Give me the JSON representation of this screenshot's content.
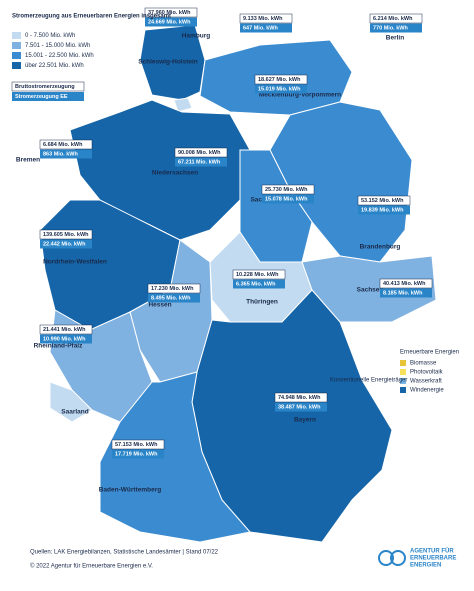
{
  "legend": {
    "title": "Stromerzeugung aus Erneuerbaren Energien insgesamt",
    "classes": [
      "0 - 7.500 Mio. kWh",
      "7.501 - 15.000 Mio. kWh",
      "15.001 - 22.500 Mio. kWh",
      "über 22.501 Mio. kWh"
    ],
    "box_total": "Bruttostromerzeugung",
    "box_ee": "Stromerzeugung EE"
  },
  "sources": {
    "title": "Erneuerbare Energien",
    "items": [
      "Biomasse",
      "Photovoltaik",
      "Wasserkraft",
      "Windenergie"
    ],
    "conventional": "Konventionelle Energieträger"
  },
  "states": [
    {
      "name": "Schleswig-Holstein",
      "total": "37.960 Mio. kWh",
      "ee": "24.669 Mio. kWh"
    },
    {
      "name": "Hamburg",
      "total": "9.133 Mio. kWh",
      "ee": "647 Mio. kWh"
    },
    {
      "name": "Mecklenburg-Vorpommern",
      "total": "18.627 Mio. kWh",
      "ee": "15.019 Mio. kWh"
    },
    {
      "name": "Bremen",
      "total": "6.684 Mio. kWh",
      "ee": "863 Mio. kWh"
    },
    {
      "name": "Niedersachsen",
      "total": "90.008 Mio. kWh",
      "ee": "67.211 Mio. kWh"
    },
    {
      "name": "Berlin",
      "total": "6.214 Mio. kWh",
      "ee": "770 Mio. kWh"
    },
    {
      "name": "Brandenburg",
      "total": "53.152 Mio. kWh",
      "ee": "19.839 Mio. kWh"
    },
    {
      "name": "Sachsen-Anhalt",
      "total": "25.730 Mio. kWh",
      "ee": "15.078 Mio. kWh"
    },
    {
      "name": "Nordrhein-Westfalen",
      "total": "139.605 Mio. kWh",
      "ee": "22.442 Mio. kWh"
    },
    {
      "name": "Hessen",
      "total": "17.230 Mio. kWh",
      "ee": "8.495 Mio. kWh"
    },
    {
      "name": "Thüringen",
      "total": "10.228 Mio. kWh",
      "ee": "6.365 Mio. kWh"
    },
    {
      "name": "Sachsen",
      "total": "40.413 Mio. kWh",
      "ee": "8.185 Mio. kWh"
    },
    {
      "name": "Rheinland-Pfalz",
      "total": "21.441 Mio. kWh",
      "ee": "10.990 Mio. kWh"
    },
    {
      "name": "Saarland"
    },
    {
      "name": "Bayern",
      "total": "74.948 Mio. kWh",
      "ee": "38.487 Mio. kWh"
    },
    {
      "name": "Baden-Württemberg",
      "total": "57.153 Mio. kWh",
      "ee": "17.719 Mio. kWh"
    }
  ],
  "footer": {
    "source": "Quellen: LAK Energiebilanzen, Statistische Landesämter | Stand 07/22",
    "copyright": "© 2022 Agentur für Erneuerbare Energien e.V.",
    "logo": [
      "AGENTUR FÜR",
      "ERNEUERBARE",
      "ENERGIEN"
    ]
  }
}
